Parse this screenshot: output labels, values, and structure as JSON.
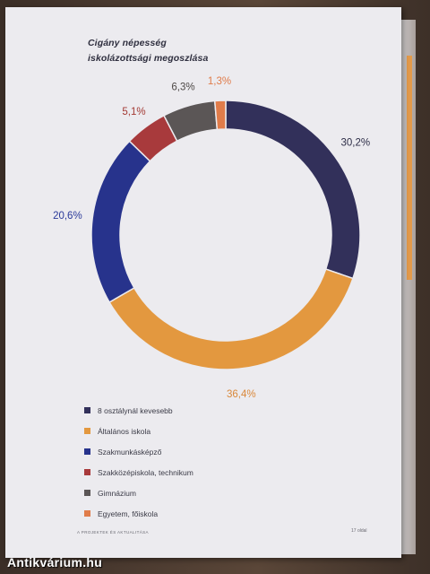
{
  "chart_data": {
    "type": "pie",
    "donut": true,
    "title_lines": [
      "Cigány népesség",
      "iskolázottsági megoszlása"
    ],
    "categories": [
      "8 osztálynál kevesebb",
      "Általános iskola",
      "Szakmunkásképző",
      "Szakközépiskola, technikum",
      "Gimnázium",
      "Egyetem, főiskola"
    ],
    "values": [
      30.2,
      36.4,
      20.6,
      5.1,
      6.3,
      1.3
    ],
    "value_labels": [
      "30,2%",
      "36,4%",
      "20,6%",
      "5,1%",
      "6,3%",
      "1,3%"
    ],
    "colors": [
      "#32305a",
      "#e3983f",
      "#27338c",
      "#a83a3c",
      "#5b5656",
      "#e07c4a"
    ],
    "label_colors": [
      "#2e2e48",
      "#d9883a",
      "#2b3a9a",
      "#a33a34",
      "#4f4a48",
      "#e07c4a"
    ],
    "legend_position": "bottom-left"
  },
  "footer": {
    "left_text": "A PROJEKTEK ÉS AKTUALITÁSA",
    "right_text": "17 oldal"
  },
  "watermark": "Antikvárium.hu"
}
